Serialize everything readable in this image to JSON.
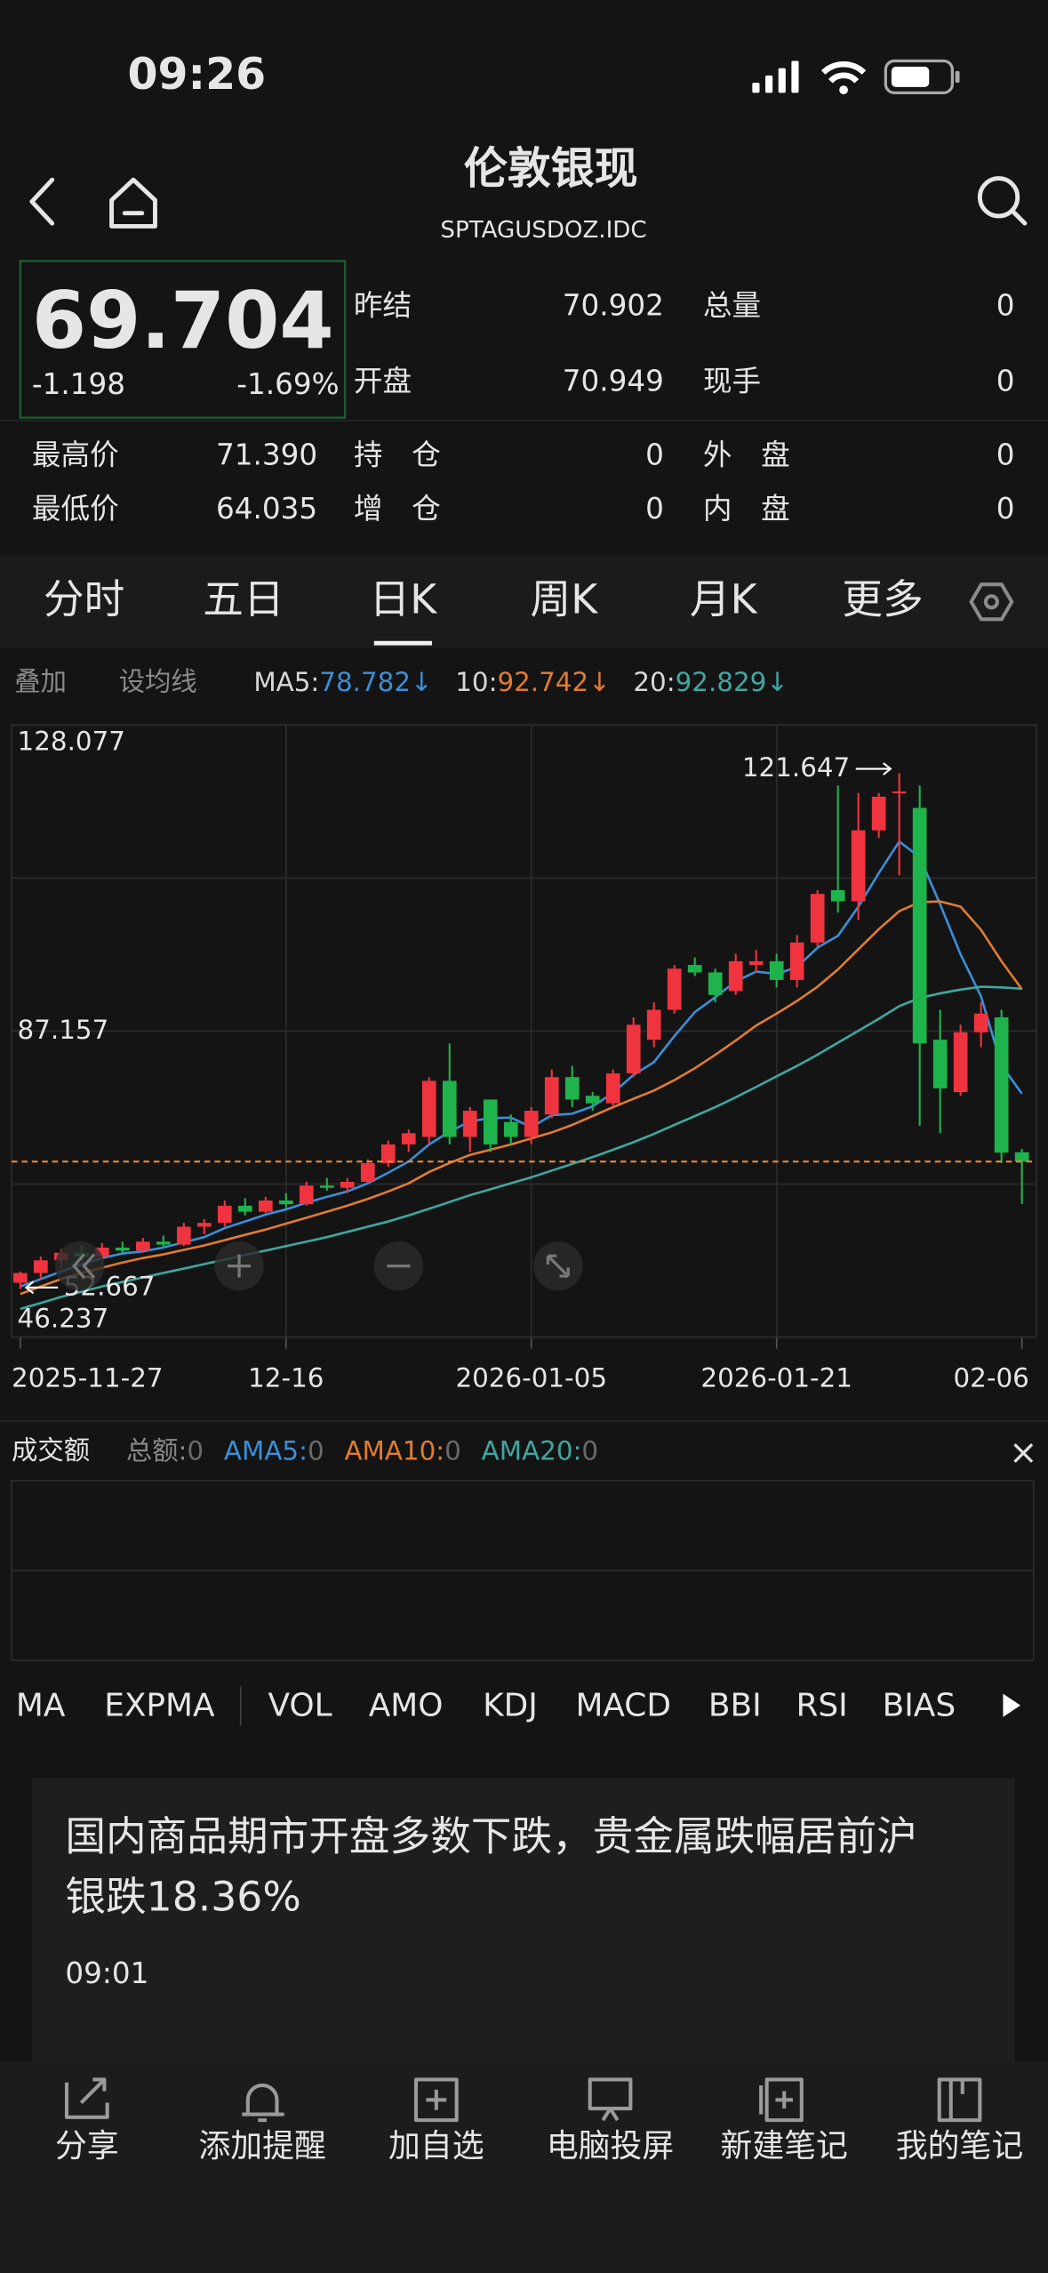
{
  "status_bar": {
    "time": "09:26"
  },
  "header": {
    "title": "伦敦银现",
    "subtitle": "SPTAGUSDOZ.IDC"
  },
  "quote": {
    "price": "69.704",
    "change": "-1.198",
    "change_pct": "-1.69%",
    "rows": [
      [
        "昨结",
        "70.902",
        "总量",
        "0"
      ],
      [
        "开盘",
        "70.949",
        "现手",
        "0"
      ],
      [
        "最高价",
        "71.390",
        "持　仓",
        "0",
        "外　盘",
        "0"
      ],
      [
        "最低价",
        "64.035",
        "增　仓",
        "0",
        "内　盘",
        "0"
      ]
    ]
  },
  "tabs": {
    "items": [
      "分时",
      "五日",
      "日K",
      "周K",
      "月K",
      "更多"
    ],
    "selected": 2
  },
  "ma_bar": {
    "overlay": "叠加",
    "set_ma": "设均线",
    "arrows": [
      "↓",
      "↓",
      "↓"
    ]
  },
  "chart_data": {
    "type": "candlestick",
    "categories": [
      "2025-11-27",
      null,
      null,
      null,
      null,
      null,
      null,
      null,
      null,
      null,
      null,
      null,
      null,
      "12-16",
      null,
      null,
      null,
      null,
      null,
      null,
      null,
      null,
      null,
      null,
      null,
      "2026-01-05",
      null,
      null,
      null,
      null,
      null,
      null,
      null,
      null,
      null,
      null,
      null,
      "2026-01-21",
      null,
      null,
      null,
      null,
      null,
      null,
      null,
      null,
      null,
      null,
      null,
      "02-06"
    ],
    "open": [
      53.5,
      54.8,
      56.5,
      57.5,
      57,
      58.2,
      57.8,
      59,
      58.6,
      61,
      61.5,
      63.8,
      63,
      64.5,
      64,
      66.5,
      66.2,
      67,
      69.5,
      72,
      73,
      80.5,
      73,
      78,
      75,
      73,
      76,
      81,
      78.5,
      77.5,
      81.5,
      86,
      90,
      96,
      95,
      92.5,
      96,
      96.5,
      94,
      99,
      106,
      104.5,
      114,
      119,
      117,
      86,
      79,
      87,
      89,
      70.949
    ],
    "high": [
      55,
      57,
      58,
      58.5,
      58.8,
      59,
      59.5,
      59.8,
      61.5,
      62,
      64.5,
      64.8,
      65,
      65.5,
      67,
      67.5,
      67.5,
      70,
      72.5,
      74,
      81,
      85.5,
      77,
      78,
      76,
      77,
      82,
      82.5,
      79,
      82,
      89,
      91,
      96,
      97,
      95.5,
      97.5,
      98,
      97.5,
      100,
      106,
      120,
      119,
      119,
      121.647,
      120,
      90,
      88,
      91,
      90,
      71.39
    ],
    "low": [
      52.667,
      54,
      55.5,
      56.5,
      56.8,
      57.5,
      57.5,
      58.3,
      58.4,
      60,
      61,
      62.5,
      62.8,
      63.5,
      63.8,
      65.8,
      65.5,
      66.8,
      69,
      71,
      72,
      72,
      71,
      71,
      72,
      72,
      75.5,
      77,
      76.5,
      77,
      81,
      85,
      89.5,
      94.5,
      91,
      92,
      95,
      93,
      93,
      98.5,
      103,
      102,
      113,
      108,
      74.5,
      73.5,
      78.5,
      85,
      69.5,
      64.035
    ],
    "close": [
      54.8,
      56.5,
      57.5,
      57,
      58.2,
      57.8,
      59,
      58.6,
      61,
      61.5,
      63.8,
      63,
      64.5,
      64,
      66.5,
      66.2,
      67,
      69.5,
      72,
      73.5,
      80.5,
      73,
      76.5,
      72,
      73,
      76.5,
      81,
      78,
      77.5,
      81.5,
      88,
      90,
      95.5,
      95,
      92,
      96.5,
      96.5,
      94,
      99,
      105.5,
      104.5,
      114,
      118.5,
      119.2,
      85.5,
      79.5,
      87,
      89.5,
      70.902,
      69.704
    ],
    "up_color": "#f0343f",
    "down_color": "#1fb34c",
    "last_line_color": "#e8883a",
    "series": [
      {
        "name": "MA5:",
        "color": "#3a8fd9",
        "values": [
          53,
          54,
          55,
          56,
          56.8,
          57.4,
          57.7,
          58.2,
          58.9,
          59.6,
          60.8,
          61.7,
          62.6,
          63.3,
          64.2,
          65,
          65.7,
          66.8,
          68.2,
          69.7,
          72,
          73.7,
          75.1,
          75.5,
          75.6,
          74.3,
          75.9,
          76.1,
          77.1,
          78.9,
          81.3,
          83,
          86.5,
          89.7,
          91.7,
          93.8,
          95.1,
          94.8,
          95.7,
          98.3,
          99.9,
          103.8,
          108.3,
          112.5,
          110.4,
          104.1,
          97.4,
          91.8,
          82.6,
          78.782
        ]
      },
      {
        "name": "10:",
        "color": "#e07c32",
        "values": [
          52,
          53,
          54,
          54.8,
          55.5,
          56.2,
          56.8,
          57.3,
          57.9,
          58.5,
          59.2,
          59.9,
          60.6,
          61.4,
          62.2,
          63,
          63.8,
          64.7,
          65.7,
          66.8,
          68.3,
          69.5,
          70.6,
          71.3,
          72,
          72.8,
          73.6,
          74.6,
          75.8,
          77,
          78.1,
          79.2,
          80.6,
          82.2,
          84,
          85.9,
          87.9,
          89.5,
          91.2,
          93.1,
          95.4,
          98.1,
          100.8,
          103.2,
          104.4,
          104.5,
          103.8,
          100.7,
          96.5,
          92.742
        ]
      },
      {
        "name": "20:",
        "color": "#3fa7a0",
        "values": [
          50,
          50.8,
          51.6,
          52.3,
          53,
          53.6,
          54.2,
          54.8,
          55.4,
          56,
          56.6,
          57.2,
          57.8,
          58.4,
          59,
          59.6,
          60.3,
          61,
          61.7,
          62.5,
          63.4,
          64.3,
          65.2,
          66,
          66.8,
          67.6,
          68.5,
          69.4,
          70.3,
          71.3,
          72.3,
          73.4,
          74.6,
          75.8,
          77,
          78.3,
          79.7,
          81.1,
          82.5,
          84,
          85.6,
          87.2,
          88.8,
          90.5,
          91.6,
          92.2,
          92.7,
          93.1,
          93.0,
          92.829
        ]
      }
    ],
    "ylim": [
      46.237,
      128.077
    ],
    "yticks": [
      128.077,
      87.157,
      46.237
    ],
    "ytick_colors": [
      "#f0343f",
      "#8a8a8a",
      "#1fb34c"
    ],
    "grid": true
  },
  "volume": {
    "title": "成交额",
    "items": [
      {
        "name": "总额:",
        "value": "0",
        "color": "#8a8a8a"
      },
      {
        "name": "AMA5:",
        "value": "0",
        "color": "#3a8fd9"
      },
      {
        "name": "AMA10:",
        "value": "0",
        "color": "#e07c32"
      },
      {
        "name": "AMA20:",
        "value": "0",
        "color": "#3fa7a0"
      }
    ]
  },
  "indicators": {
    "items": [
      "MA",
      "EXPMA",
      "VOL",
      "AMO",
      "KDJ",
      "MACD",
      "BBI",
      "RSI",
      "BIAS"
    ],
    "selected": [
      0,
      3
    ]
  },
  "news": {
    "title_lines": [
      "国内商品期市开盘多数下跌，贵金属跌幅居前沪",
      "银跌18.36%"
    ],
    "time": "09:01"
  },
  "toolbar": [
    "分享",
    "添加提醒",
    "加自选",
    "电脑投屏",
    "新建笔记",
    "我的笔记"
  ]
}
